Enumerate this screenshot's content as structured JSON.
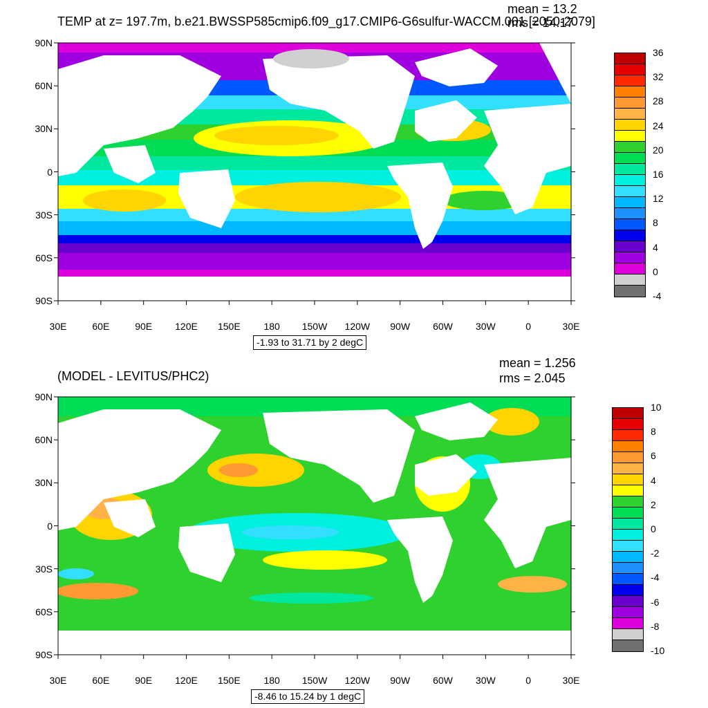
{
  "panels": [
    {
      "title": "TEMP at z= 197.7m, b.e21.BWSSP585cmip6.f09_g17.CMIP6-G6sulfur-WACCM.001 [2050-2079]",
      "mean": "mean = 13.2",
      "rms": "rms = 14.17",
      "range_label": "-1.93 to 31.71 by 2 degC",
      "colorbar": {
        "labels": [
          "36",
          "32",
          "28",
          "24",
          "20",
          "16",
          "12",
          "8",
          "4",
          "0",
          "-4"
        ],
        "colors": [
          "#c00000",
          "#e60000",
          "#ff2a00",
          "#ff7f00",
          "#ff9a33",
          "#ffb347",
          "#ffd400",
          "#ffff00",
          "#2fd12f",
          "#00dd55",
          "#00e8a0",
          "#00f0e0",
          "#33dfff",
          "#00b8ff",
          "#2090ff",
          "#0058ff",
          "#0000ee",
          "#6a00cc",
          "#9f00e0",
          "#dd00dd",
          "#d0d0d0",
          "#707070"
        ]
      }
    },
    {
      "title": "(MODEL - LEVITUS/PHC2)",
      "mean": "mean = 1.256",
      "rms": "rms = 2.045",
      "range_label": "-8.46 to 15.24 by 1 degC",
      "colorbar": {
        "labels": [
          "10",
          "8",
          "6",
          "4",
          "2",
          "0",
          "-2",
          "-4",
          "-6",
          "-8",
          "-10"
        ],
        "colors": [
          "#c00000",
          "#e60000",
          "#ff2a00",
          "#ff7f00",
          "#ff9a33",
          "#ffb347",
          "#ffd400",
          "#ffff00",
          "#2fd12f",
          "#00dd55",
          "#00e8a0",
          "#00f0e0",
          "#33dfff",
          "#00b8ff",
          "#2090ff",
          "#0058ff",
          "#0000ee",
          "#6a00cc",
          "#9f00e0",
          "#dd00dd",
          "#d0d0d0",
          "#707070"
        ]
      }
    }
  ],
  "axes": {
    "lat_labels": [
      "90N",
      "60N",
      "30N",
      "0",
      "30S",
      "60S",
      "90S"
    ],
    "lon_labels": [
      "30E",
      "60E",
      "90E",
      "120E",
      "150E",
      "180",
      "150W",
      "120W",
      "90W",
      "60W",
      "30W",
      "0",
      "30E"
    ]
  },
  "colors": {
    "land": "#ffffff",
    "frame": "#000000"
  }
}
